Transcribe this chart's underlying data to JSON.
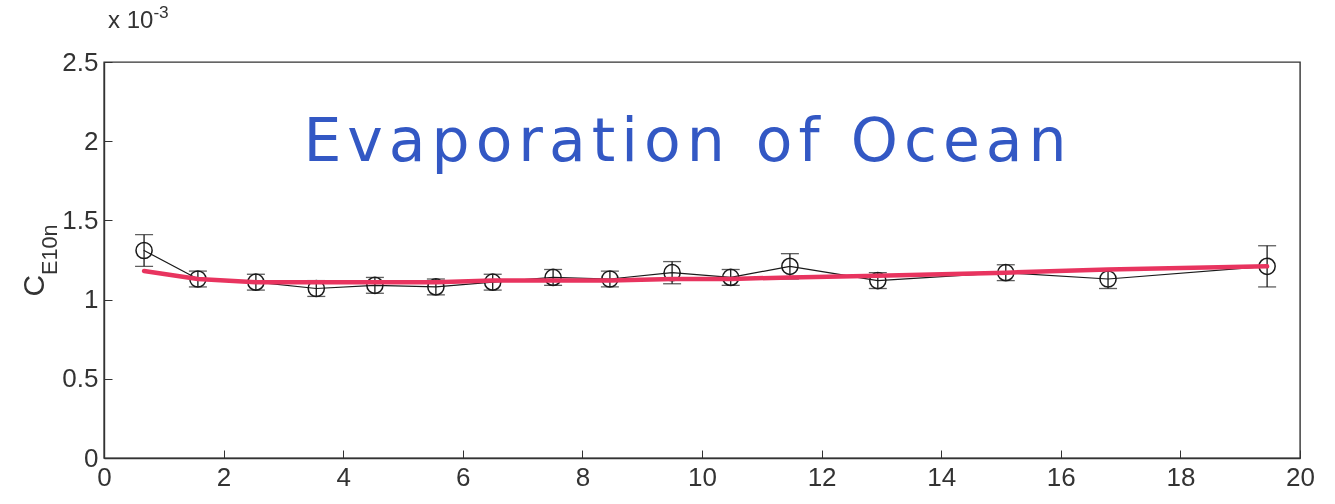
{
  "chart_data": {
    "type": "line",
    "title": "Evaporation of Ocean",
    "ylabel": "C$_{E10n}$",
    "annotations": [
      "x 10$^{-3}$"
    ],
    "x": [
      0.67,
      1.57,
      2.54,
      3.55,
      4.53,
      5.55,
      6.5,
      7.51,
      8.46,
      9.5,
      10.48,
      11.47,
      12.94,
      15.08,
      16.79,
      19.45
    ],
    "series": [
      {
        "color": "#1a1a1a",
        "values": [
          1.31,
          1.13,
          1.11,
          1.07,
          1.09,
          1.08,
          1.11,
          1.14,
          1.13,
          1.17,
          1.14,
          1.21,
          1.12,
          1.17,
          1.13,
          1.21
        ],
        "errors": [
          0.1,
          0.05,
          0.05,
          0.05,
          0.05,
          0.05,
          0.05,
          0.05,
          0.05,
          0.07,
          0.05,
          0.08,
          0.05,
          0.05,
          0.06,
          0.13
        ]
      },
      {
        "type": "line",
        "color": "#e8345f",
        "marker": "none",
        "values": [
          1.18,
          1.13,
          1.11,
          1.11,
          1.11,
          1.11,
          1.12,
          1.12,
          1.12,
          1.13,
          1.13,
          1.14,
          1.15,
          1.17,
          1.19,
          1.21
        ]
      }
    ],
    "xlim": [
      0,
      20
    ],
    "xticks": [
      0,
      2,
      4,
      6,
      8,
      10,
      12,
      14,
      16,
      18,
      20
    ],
    "ylim": [
      0,
      2.5
    ],
    "yticks": [
      0,
      0.5,
      1,
      1.5,
      2,
      2.5
    ],
    "grid": false,
    "legend": false,
    "marker": "circle",
    "line_style": "solid"
  }
}
